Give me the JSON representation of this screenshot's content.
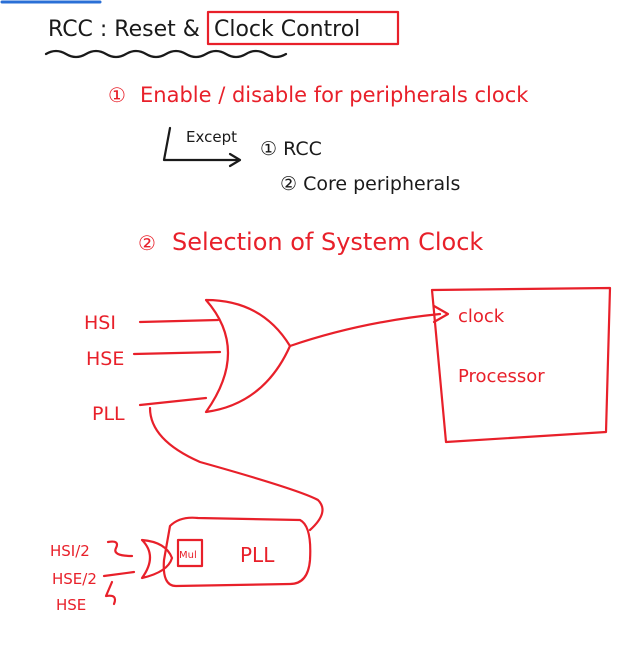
{
  "title": {
    "prefix": "RCC : Reset &",
    "boxed": "Clock Control"
  },
  "point1": {
    "number": "①",
    "text": "Enable / disable for peripherals clock",
    "except_label": "Except",
    "exceptions": [
      "① RCC",
      "② Core peripherals"
    ]
  },
  "point2": {
    "number": "②",
    "text": "Selection of System Clock"
  },
  "mux_inputs": [
    "HSI",
    "HSE",
    "PLL"
  ],
  "processor": {
    "clock_label": "clock",
    "name": "Processor"
  },
  "pll_block": {
    "mul_label": "Mul",
    "name": "PLL",
    "inputs": [
      "HSI/2",
      "HSE/2",
      "HSE"
    ]
  },
  "colors": {
    "ink_red": "#e8202a",
    "ink_black": "#1a1a1a",
    "accent_blue": "#2a6fd6"
  }
}
